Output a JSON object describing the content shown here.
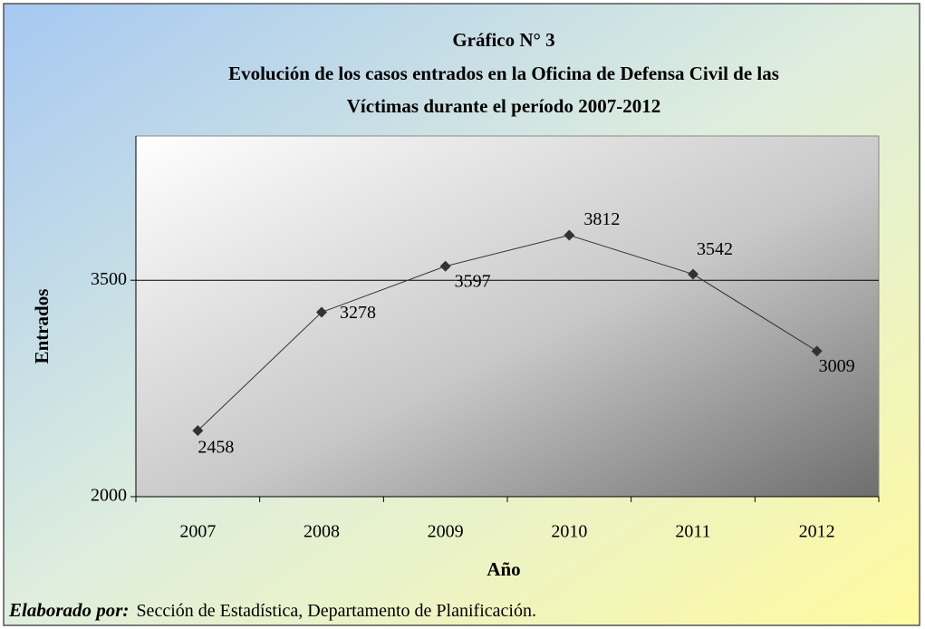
{
  "chart_data": {
    "type": "line",
    "title": "Gráfico N° 3",
    "subtitle": [
      "Evolución de los casos entrados en la Oficina de Defensa Civil de las",
      "Víctimas durante el período 2007-2012"
    ],
    "x_label": "Año",
    "y_label": "Entrados",
    "categories": [
      "2007",
      "2008",
      "2009",
      "2010",
      "2011",
      "2012"
    ],
    "values": [
      2458,
      3278,
      3597,
      3812,
      3542,
      3009
    ],
    "color": "#333333",
    "ylim": [
      2000,
      4500
    ],
    "yticks": [
      2000,
      3500
    ],
    "grid": true,
    "footnote": {
      "label": "Elaborado por:",
      "text": "Sección de Estadística, Departamento de Planificación."
    }
  }
}
